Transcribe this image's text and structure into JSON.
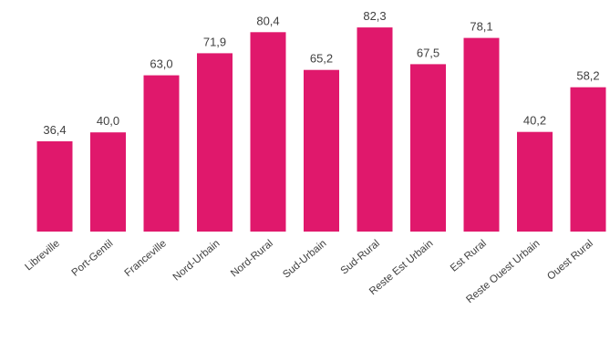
{
  "chart_data": {
    "type": "bar",
    "title": "",
    "xlabel": "",
    "ylabel": "",
    "categories": [
      "Libreville",
      "Port-Gentil",
      "Franceville",
      "Nord-Urbain",
      "Nord-Rural",
      "Sud-Urbain",
      "Sud-Rural",
      "Reste Est Urbain",
      "Est Rural",
      "Reste Ouest Urbain",
      "Ouest Rural"
    ],
    "values": [
      36.4,
      40.0,
      63.0,
      71.9,
      80.4,
      65.2,
      82.3,
      67.5,
      78.1,
      40.2,
      58.2
    ],
    "value_labels": [
      "36,4",
      "40,0",
      "63,0",
      "71,9",
      "80,4",
      "65,2",
      "82,3",
      "67,5",
      "78,1",
      "40,2",
      "58,2"
    ],
    "ylim": [
      0,
      100
    ],
    "grid": false,
    "legend": "none",
    "bar_color": "#e0186c"
  }
}
